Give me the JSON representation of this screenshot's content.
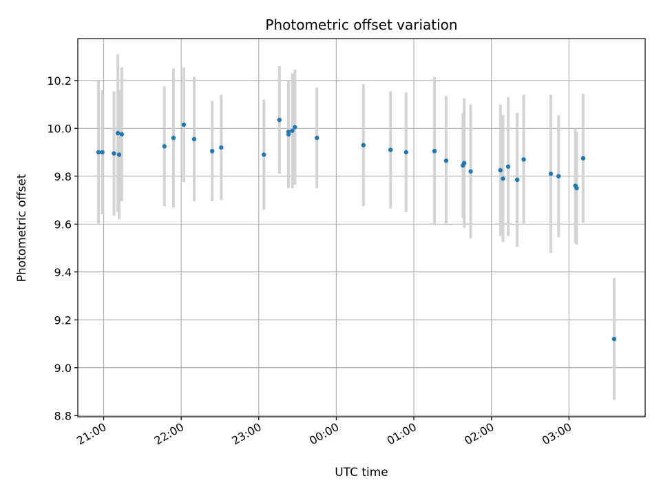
{
  "chart_data": {
    "type": "scatter",
    "title": "Photometric offset variation",
    "xlabel": "UTC time",
    "ylabel": "Photometric offset",
    "x_axis_type": "time",
    "xlim": [
      "20:40",
      "03:59"
    ],
    "x_ticks": [
      "21:00",
      "22:00",
      "23:00",
      "00:00",
      "01:00",
      "02:00",
      "03:00"
    ],
    "ylim": [
      8.795,
      10.375
    ],
    "y_ticks": [
      "8.8",
      "9.0",
      "9.2",
      "9.4",
      "9.6",
      "9.8",
      "10.0",
      "10.2"
    ],
    "grid": true,
    "colors": {
      "point": "#1f77b4",
      "errorbar": "#d3d3d3",
      "grid": "#b0b0b0"
    },
    "points": [
      {
        "x": "20:56",
        "y": 9.9,
        "yerr": 0.3
      },
      {
        "x": "20:59",
        "y": 9.9,
        "yerr": 0.26
      },
      {
        "x": "21:08",
        "y": 9.895,
        "yerr": 0.26
      },
      {
        "x": "21:11",
        "y": 9.98,
        "yerr": 0.33
      },
      {
        "x": "21:12",
        "y": 9.89,
        "yerr": 0.27
      },
      {
        "x": "21:14",
        "y": 9.975,
        "yerr": 0.28
      },
      {
        "x": "21:47",
        "y": 9.925,
        "yerr": 0.25
      },
      {
        "x": "21:54",
        "y": 9.96,
        "yerr": 0.29
      },
      {
        "x": "22:02",
        "y": 10.015,
        "yerr": 0.24
      },
      {
        "x": "22:10",
        "y": 9.955,
        "yerr": 0.26
      },
      {
        "x": "22:24",
        "y": 9.905,
        "yerr": 0.21
      },
      {
        "x": "22:31",
        "y": 9.92,
        "yerr": 0.22
      },
      {
        "x": "23:04",
        "y": 9.89,
        "yerr": 0.23
      },
      {
        "x": "23:16",
        "y": 10.035,
        "yerr": 0.225
      },
      {
        "x": "23:23",
        "y": 9.975,
        "yerr": 0.225
      },
      {
        "x": "23:23",
        "y": 9.985,
        "yerr": 0.21
      },
      {
        "x": "23:26",
        "y": 9.99,
        "yerr": 0.24
      },
      {
        "x": "23:28",
        "y": 10.005,
        "yerr": 0.24
      },
      {
        "x": "23:45",
        "y": 9.96,
        "yerr": 0.21
      },
      {
        "x": "00:21",
        "y": 9.93,
        "yerr": 0.255
      },
      {
        "x": "00:42",
        "y": 9.91,
        "yerr": 0.245
      },
      {
        "x": "00:54",
        "y": 9.9,
        "yerr": 0.25
      },
      {
        "x": "01:16",
        "y": 9.905,
        "yerr": 0.31
      },
      {
        "x": "01:25",
        "y": 9.865,
        "yerr": 0.27
      },
      {
        "x": "01:38",
        "y": 9.845,
        "yerr": 0.22
      },
      {
        "x": "01:39",
        "y": 9.855,
        "yerr": 0.27
      },
      {
        "x": "01:44",
        "y": 9.82,
        "yerr": 0.28
      },
      {
        "x": "02:07",
        "y": 9.825,
        "yerr": 0.275
      },
      {
        "x": "02:09",
        "y": 9.79,
        "yerr": 0.265
      },
      {
        "x": "02:13",
        "y": 9.84,
        "yerr": 0.29
      },
      {
        "x": "02:20",
        "y": 9.785,
        "yerr": 0.28
      },
      {
        "x": "02:25",
        "y": 9.87,
        "yerr": 0.27
      },
      {
        "x": "02:46",
        "y": 9.81,
        "yerr": 0.33
      },
      {
        "x": "02:52",
        "y": 9.8,
        "yerr": 0.255
      },
      {
        "x": "03:05",
        "y": 9.76,
        "yerr": 0.24
      },
      {
        "x": "03:06",
        "y": 9.75,
        "yerr": 0.235
      },
      {
        "x": "03:11",
        "y": 9.875,
        "yerr": 0.27
      },
      {
        "x": "03:35",
        "y": 9.12,
        "yerr": 0.255
      }
    ]
  }
}
